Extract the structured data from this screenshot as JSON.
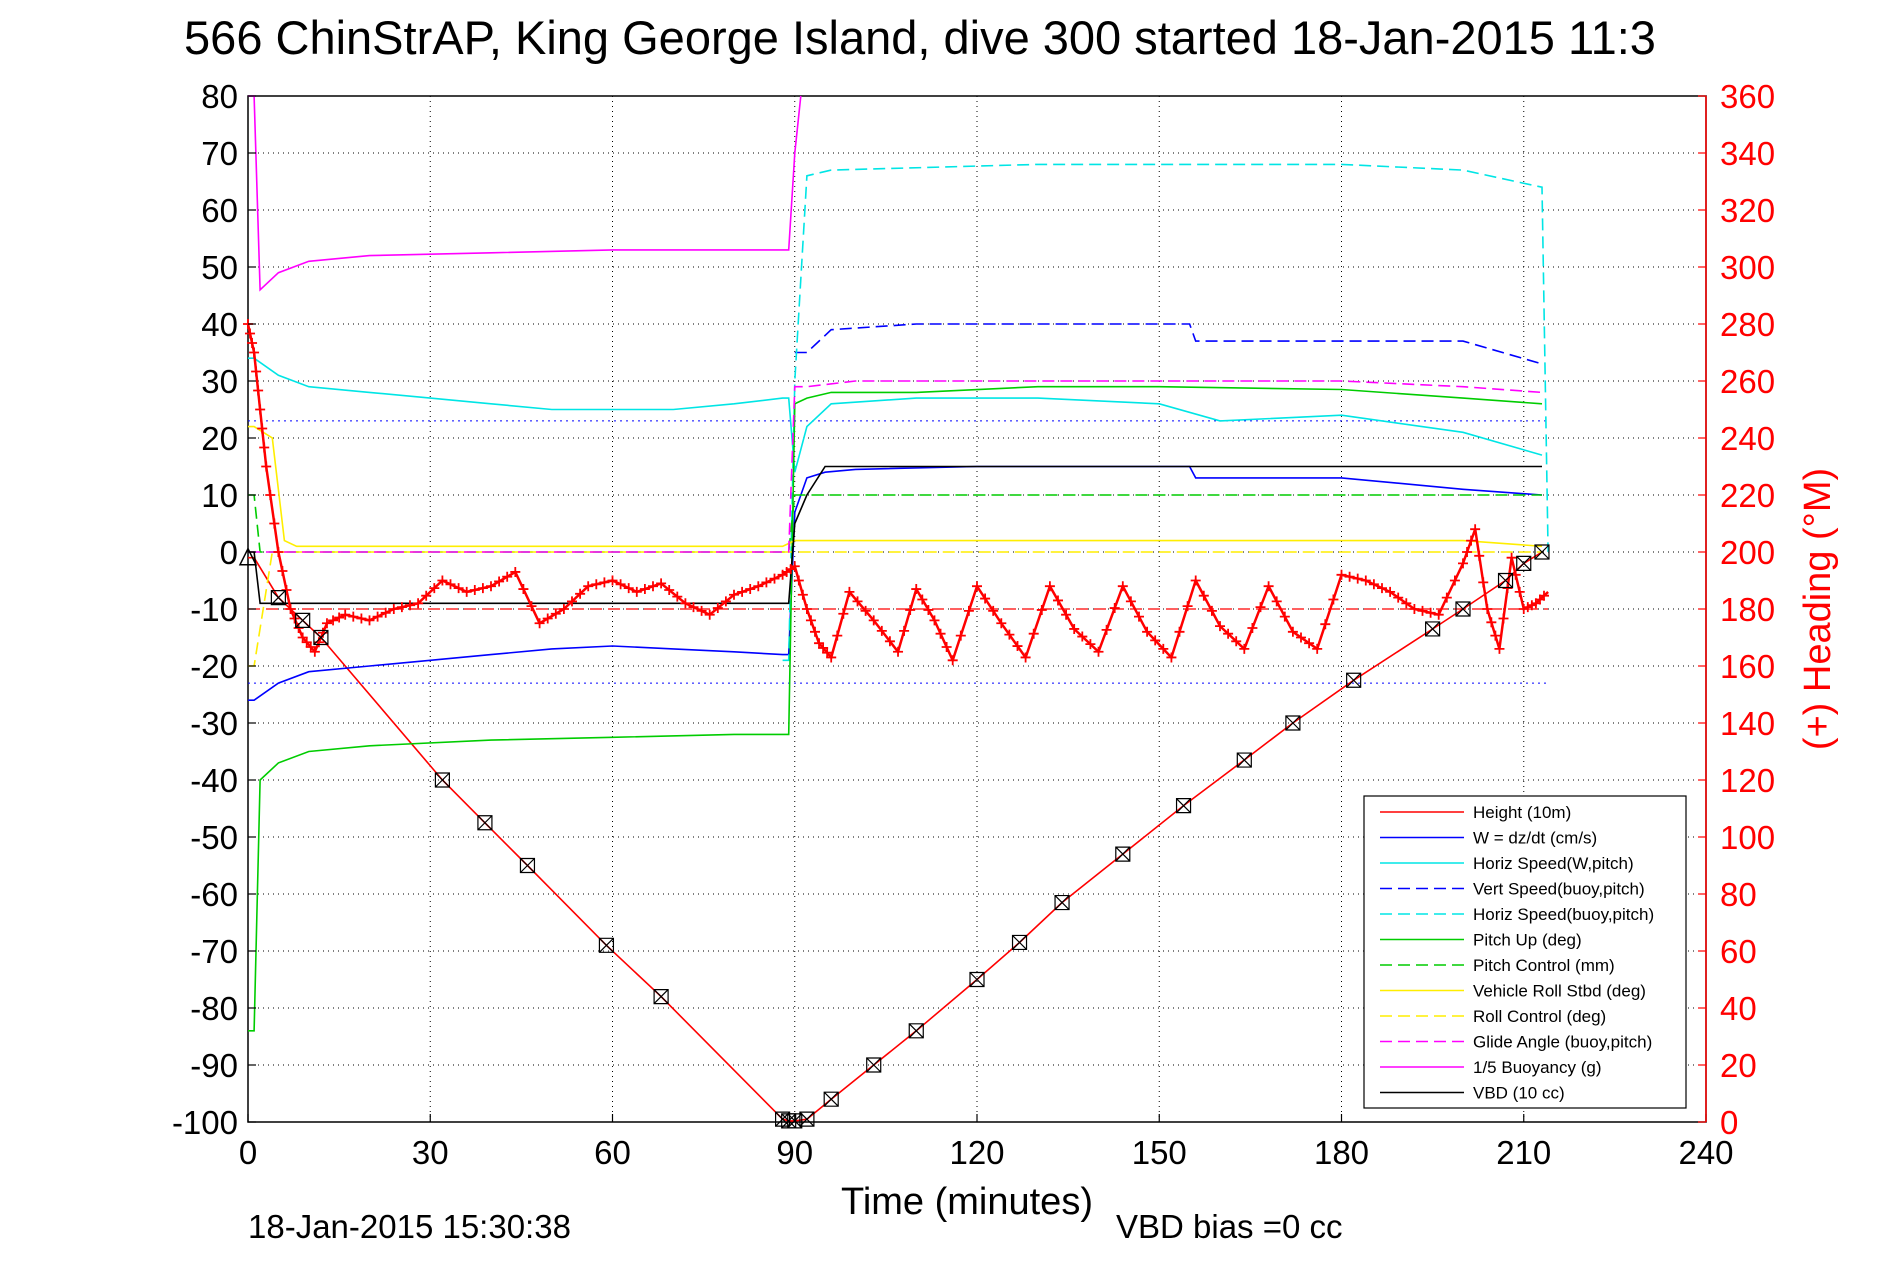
{
  "chart_data": {
    "type": "line",
    "title": "566 ChinStrAP, King George Island, dive 300 started 18-Jan-2015 11:3",
    "xlabel": "Time (minutes)",
    "ylabel_right": "(+) Heading (°M)",
    "footer_left": "18-Jan-2015 15:30:38",
    "footer_right": "VBD bias =0 cc",
    "xlim": [
      0,
      240
    ],
    "ylim": [
      -100,
      80
    ],
    "ylim_right": [
      0,
      360
    ],
    "x_ticks": [
      "0",
      "30",
      "60",
      "90",
      "120",
      "150",
      "180",
      "210",
      "240"
    ],
    "y_ticks": [
      "80",
      "70",
      "60",
      "50",
      "40",
      "30",
      "20",
      "10",
      "0",
      "-10",
      "-20",
      "-30",
      "-40",
      "-50",
      "-60",
      "-70",
      "-80",
      "-90",
      "-100"
    ],
    "y2_ticks": [
      "360",
      "340",
      "320",
      "300",
      "280",
      "260",
      "240",
      "220",
      "200",
      "180",
      "160",
      "140",
      "120",
      "100",
      "80",
      "60",
      "40",
      "20",
      "0"
    ],
    "grid": true,
    "legend_position": "lower-right",
    "series": [
      {
        "name": "Height (10m)",
        "color": "#ff0000",
        "style": "solid",
        "marker": "none",
        "x": [
          0,
          1,
          5,
          9,
          12,
          32,
          39,
          46,
          59,
          68,
          88,
          89,
          90,
          92,
          96,
          103,
          110,
          120,
          127,
          134,
          144,
          154,
          164,
          172,
          182,
          195,
          200,
          207,
          210,
          213
        ],
        "y": [
          -1,
          -1,
          -8,
          -12,
          -15,
          -40,
          -47.5,
          -55,
          -69,
          -78,
          -99.5,
          -99.8,
          -99.8,
          -99.5,
          -96,
          -90,
          -84,
          -75,
          -68.5,
          -61.5,
          -53,
          -44.5,
          -36.5,
          -30,
          -22.5,
          -13.5,
          -10,
          -5,
          -2,
          0
        ]
      },
      {
        "name": "W = dz/dt (cm/s)",
        "color": "#0000ff",
        "style": "solid",
        "x": [
          0,
          1,
          5,
          10,
          20,
          30,
          40,
          50,
          60,
          70,
          80,
          88,
          89,
          90,
          92,
          95,
          100,
          120,
          140,
          155,
          156,
          180,
          200,
          213
        ],
        "y": [
          -26,
          -26,
          -23,
          -21,
          -20,
          -19,
          -18,
          -17,
          -16.5,
          -17,
          -17.5,
          -18,
          -18,
          7,
          13,
          14,
          14.5,
          15,
          15,
          15,
          13,
          13,
          11,
          10
        ]
      },
      {
        "name": "Horiz Speed(W,pitch)",
        "color": "#00e5e5",
        "style": "solid",
        "x": [
          0,
          1,
          5,
          10,
          20,
          30,
          40,
          50,
          60,
          70,
          80,
          88,
          89,
          90,
          92,
          96,
          110,
          130,
          150,
          160,
          180,
          200,
          213
        ],
        "y": [
          34,
          34,
          31,
          29,
          28,
          27,
          26,
          25,
          25,
          25,
          26,
          27,
          27,
          14,
          22,
          26,
          27,
          27,
          26,
          23,
          24,
          21,
          17
        ]
      },
      {
        "name": "Vert Speed(buoy,pitch)",
        "color": "#0000ff",
        "style": "dashed",
        "x": [
          90,
          92,
          96,
          110,
          130,
          150,
          155,
          156,
          180,
          200,
          213
        ],
        "y": [
          35,
          35,
          39,
          40,
          40,
          40,
          40,
          37,
          37,
          37,
          33
        ]
      },
      {
        "name": "Horiz Speed(buoy,pitch)",
        "color": "#00e5e5",
        "style": "dashed",
        "x": [
          88,
          89,
          90,
          92,
          96,
          130,
          160,
          180,
          200,
          213,
          214
        ],
        "y": [
          -19,
          -19,
          30,
          66,
          67,
          68,
          68,
          68,
          67,
          64,
          0
        ]
      },
      {
        "name": "Pitch Up (deg)",
        "color": "#00cc00",
        "style": "solid",
        "x": [
          0,
          1,
          2,
          5,
          10,
          20,
          40,
          60,
          80,
          88,
          89,
          90,
          92,
          96,
          110,
          130,
          150,
          180,
          200,
          213
        ],
        "y": [
          -84,
          -84,
          -40,
          -37,
          -35,
          -34,
          -33,
          -32.5,
          -32,
          -32,
          -32,
          26,
          27,
          28,
          28,
          29,
          29,
          28.5,
          27,
          26
        ]
      },
      {
        "name": "Pitch Control (mm)",
        "color": "#00cc00",
        "style": "dashed",
        "x": [
          0,
          1,
          2,
          5,
          10,
          50,
          88,
          89,
          90,
          100,
          150,
          213
        ],
        "y": [
          10,
          10,
          0,
          0,
          0,
          0,
          0,
          0,
          10,
          10,
          10,
          10
        ]
      },
      {
        "name": "Vehicle Roll Stbd (deg)",
        "color": "#ffee00",
        "style": "solid",
        "x": [
          0,
          1,
          4,
          6,
          8,
          12,
          20,
          40,
          60,
          80,
          88,
          90,
          92,
          100,
          130,
          160,
          190,
          200,
          213
        ],
        "y": [
          22,
          22,
          20,
          2,
          1,
          1,
          1,
          1,
          1,
          1,
          1,
          2,
          2,
          2,
          2,
          2,
          2,
          2,
          1
        ]
      },
      {
        "name": "Roll Control (deg)",
        "color": "#ffee00",
        "style": "dashed",
        "x": [
          0,
          1,
          4,
          6,
          10,
          60,
          88,
          90,
          120,
          200,
          213
        ],
        "y": [
          -20,
          -20,
          0,
          0,
          0,
          0,
          0,
          0,
          0,
          0,
          0
        ]
      },
      {
        "name": "Glide Angle (buoy,pitch)",
        "color": "#ff00ff",
        "style": "dashed",
        "x": [
          0,
          1,
          5,
          88,
          89,
          90,
          92,
          100,
          150,
          180,
          200,
          213
        ],
        "y": [
          0,
          0,
          0,
          0,
          0,
          29,
          29,
          30,
          30,
          30,
          29,
          28
        ]
      },
      {
        "name": "1/5 Buoyancy (g)",
        "color": "#ff00ff",
        "style": "solid",
        "x": [
          0,
          1,
          2,
          5,
          10,
          20,
          40,
          60,
          80,
          88,
          89,
          90,
          91
        ],
        "y": [
          80,
          80,
          46,
          49,
          51,
          52,
          52.5,
          53,
          53,
          53,
          53,
          70,
          80
        ]
      },
      {
        "name": "VBD (10 cc)",
        "color": "#000000",
        "style": "solid",
        "x": [
          0,
          1,
          2,
          88,
          89,
          90,
          92,
          95,
          213
        ],
        "y": [
          0,
          0,
          -9,
          -9,
          -9,
          5,
          10,
          15,
          15
        ]
      }
    ],
    "heading": {
      "name": "(+) Heading (°M)",
      "color": "#ff0000",
      "marker": "+",
      "x": [
        0,
        1,
        2,
        3,
        5,
        7,
        9,
        11,
        13,
        16,
        20,
        24,
        28,
        32,
        36,
        40,
        44,
        48,
        52,
        56,
        60,
        64,
        68,
        72,
        76,
        80,
        84,
        88,
        90,
        92,
        94,
        96,
        99,
        103,
        107,
        110,
        113,
        116,
        120,
        124,
        128,
        132,
        136,
        140,
        144,
        148,
        152,
        156,
        160,
        164,
        168,
        172,
        176,
        180,
        184,
        188,
        192,
        196,
        200,
        202,
        204,
        206,
        208,
        210,
        212,
        214
      ],
      "y": [
        280,
        270,
        250,
        230,
        200,
        180,
        170,
        165,
        175,
        178,
        176,
        180,
        182,
        190,
        186,
        188,
        193,
        175,
        180,
        188,
        190,
        186,
        189,
        182,
        178,
        185,
        188,
        192,
        195,
        180,
        168,
        163,
        186,
        176,
        165,
        187,
        176,
        162,
        188,
        175,
        163,
        188,
        173,
        165,
        188,
        172,
        163,
        190,
        174,
        166,
        188,
        172,
        166,
        192,
        190,
        186,
        180,
        178,
        196,
        208,
        180,
        166,
        198,
        180,
        182,
        186
      ]
    },
    "heading_avg": {
      "color": "#ff0000",
      "style": "dashed",
      "y": 180
    },
    "wg_ref": {
      "color": "#0000ff",
      "style": "dotted",
      "y": [
        -23,
        23
      ]
    }
  }
}
